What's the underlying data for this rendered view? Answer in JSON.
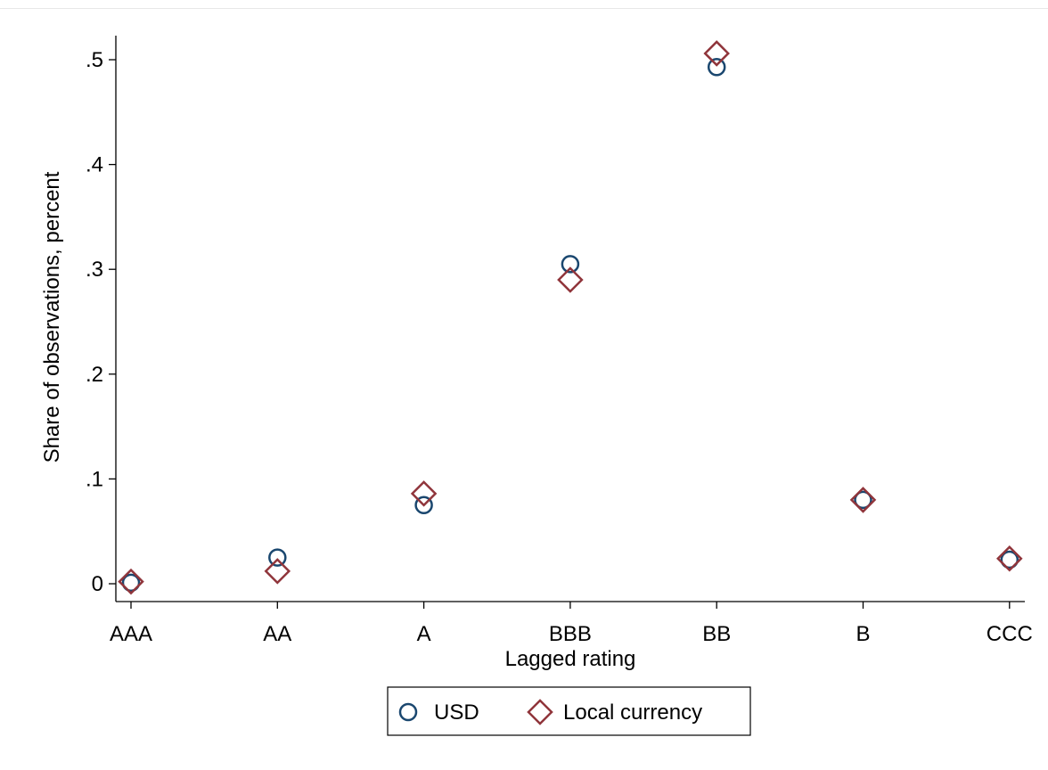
{
  "chart_data": {
    "type": "scatter",
    "title": "",
    "xlabel": "Lagged rating",
    "ylabel": "Share of observations, percent",
    "categories": [
      "AAA",
      "AA",
      "A",
      "BBB",
      "BB",
      "B",
      "CCC"
    ],
    "ylim": [
      -0.015,
      0.52
    ],
    "yticks": [
      {
        "value": 0,
        "label": "0"
      },
      {
        "value": 0.1,
        "label": ".1"
      },
      {
        "value": 0.2,
        "label": ".2"
      },
      {
        "value": 0.3,
        "label": ".3"
      },
      {
        "value": 0.4,
        "label": ".4"
      },
      {
        "value": 0.5,
        "label": ".5"
      }
    ],
    "grid": false,
    "legend_position": "bottom-center",
    "series": [
      {
        "name": "USD",
        "marker": "circle",
        "color": "#1a476f",
        "values": [
          0.001,
          0.025,
          0.075,
          0.305,
          0.493,
          0.08,
          0.023
        ]
      },
      {
        "name": "Local currency",
        "marker": "diamond",
        "color": "#90353b",
        "values": [
          0.002,
          0.012,
          0.086,
          0.29,
          0.506,
          0.08,
          0.024
        ]
      }
    ]
  }
}
